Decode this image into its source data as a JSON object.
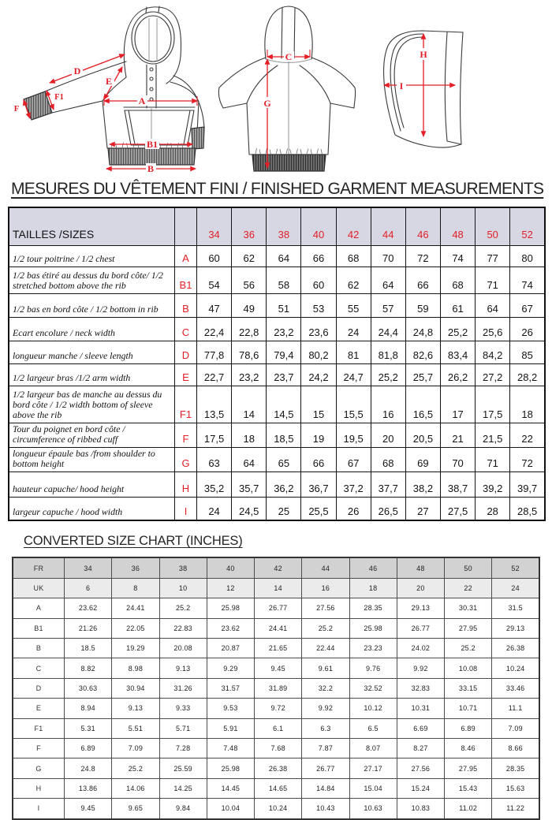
{
  "title_main": "MESURES DU VÊTEMENT FINI / FINISHED GARMENT MEASUREMENTS",
  "title_inches": "CONVERTED SIZE CHART (INCHES)",
  "diagram_labels": {
    "a": "A",
    "b": "B",
    "b1": "B1",
    "c": "C",
    "d": "D",
    "e": "E",
    "f": "F",
    "f1": "F1",
    "g": "G",
    "h": "H",
    "i": "I"
  },
  "colors": {
    "accent_red": "#e41e26",
    "table1_header_bg": "#d7d6e3",
    "fr_row_bg": "#d2d2d2",
    "uk_row_bg": "#ebebeb"
  },
  "finished_table": {
    "header_label": "TAILLES /SIZES",
    "sizes": [
      "34",
      "36",
      "38",
      "40",
      "42",
      "44",
      "46",
      "48",
      "50",
      "52"
    ],
    "rows": [
      {
        "label": "1/2 tour poitrine / 1/2 chest",
        "letter": "A",
        "values": [
          "60",
          "62",
          "64",
          "66",
          "68",
          "70",
          "72",
          "74",
          "77",
          "80"
        ]
      },
      {
        "label": "1/2 bas étiré au dessus du bord côte/ 1/2 stretched bottom above the rib",
        "letter": "B1",
        "values": [
          "54",
          "56",
          "58",
          "60",
          "62",
          "64",
          "66",
          "68",
          "71",
          "74"
        ]
      },
      {
        "label": "1/2 bas en bord côte / 1/2 bottom in rib",
        "letter": "B",
        "values": [
          "47",
          "49",
          "51",
          "53",
          "55",
          "57",
          "59",
          "61",
          "64",
          "67"
        ]
      },
      {
        "label": "Ecart encolure / neck width",
        "letter": "C",
        "values": [
          "22,4",
          "22,8",
          "23,2",
          "23,6",
          "24",
          "24,4",
          "24,8",
          "25,2",
          "25,6",
          "26"
        ]
      },
      {
        "label": "longueur manche  / sleeve length",
        "letter": "D",
        "values": [
          "77,8",
          "78,6",
          "79,4",
          "80,2",
          "81",
          "81,8",
          "82,6",
          "83,4",
          "84,2",
          "85"
        ]
      },
      {
        "label": "1/2 largeur bras /1/2  arm width",
        "letter": "E",
        "values": [
          "22,7",
          "23,2",
          "23,7",
          "24,2",
          "24,7",
          "25,2",
          "25,7",
          "26,2",
          "27,2",
          "28,2"
        ]
      },
      {
        "label": "1/2 largeur bas de manche au dessus du bord côte / 1/2  width bottom of sleeve above the rib",
        "letter": "F1",
        "values": [
          "13,5",
          "14",
          "14,5",
          "15",
          "15,5",
          "16",
          "16,5",
          "17",
          "17,5",
          "18"
        ]
      },
      {
        "label": "Tour du poignet  en bord côte / circumference of  ribbed cuff",
        "letter": "F",
        "values": [
          "17,5",
          "18",
          "18,5",
          "19",
          "19,5",
          "20",
          "20,5",
          "21",
          "21,5",
          "22"
        ]
      },
      {
        "label": "longueur épaule bas  /from shoulder to bottom height",
        "letter": "G",
        "values": [
          "63",
          "64",
          "65",
          "66",
          "67",
          "68",
          "69",
          "70",
          "71",
          "72"
        ]
      },
      {
        "label": "hauteur capuche/ hood height",
        "letter": "H",
        "values": [
          "35,2",
          "35,7",
          "36,2",
          "36,7",
          "37,2",
          "37,7",
          "38,2",
          "38,7",
          "39,2",
          "39,7"
        ]
      },
      {
        "label": "largeur capuche / hood width",
        "letter": "I",
        "values": [
          "24",
          "24,5",
          "25",
          "25,5",
          "26",
          "26,5",
          "27",
          "27,5",
          "28",
          "28,5"
        ]
      }
    ]
  },
  "inches_table": {
    "fr": {
      "label": "FR",
      "values": [
        "34",
        "36",
        "38",
        "40",
        "42",
        "44",
        "46",
        "48",
        "50",
        "52"
      ]
    },
    "uk": {
      "label": "UK",
      "values": [
        "6",
        "8",
        "10",
        "12",
        "14",
        "16",
        "18",
        "20",
        "22",
        "24"
      ]
    },
    "rows": [
      {
        "letter": "A",
        "values": [
          "23.62",
          "24.41",
          "25.2",
          "25.98",
          "26.77",
          "27.56",
          "28.35",
          "29.13",
          "30.31",
          "31.5"
        ]
      },
      {
        "letter": "B1",
        "values": [
          "21.26",
          "22.05",
          "22.83",
          "23.62",
          "24.41",
          "25.2",
          "25.98",
          "26.77",
          "27.95",
          "29.13"
        ]
      },
      {
        "letter": "B",
        "values": [
          "18.5",
          "19.29",
          "20.08",
          "20.87",
          "21.65",
          "22.44",
          "23.23",
          "24.02",
          "25.2",
          "26.38"
        ]
      },
      {
        "letter": "C",
        "values": [
          "8.82",
          "8.98",
          "9.13",
          "9.29",
          "9.45",
          "9.61",
          "9.76",
          "9.92",
          "10.08",
          "10.24"
        ]
      },
      {
        "letter": "D",
        "values": [
          "30.63",
          "30.94",
          "31.26",
          "31.57",
          "31.89",
          "32.2",
          "32.52",
          "32.83",
          "33.15",
          "33.46"
        ]
      },
      {
        "letter": "E",
        "values": [
          "8.94",
          "9.13",
          "9.33",
          "9.53",
          "9.72",
          "9.92",
          "10.12",
          "10.31",
          "10.71",
          "11.1"
        ]
      },
      {
        "letter": "F1",
        "values": [
          "5.31",
          "5.51",
          "5.71",
          "5.91",
          "6.1",
          "6.3",
          "6.5",
          "6.69",
          "6.89",
          "7.09"
        ]
      },
      {
        "letter": "F",
        "values": [
          "6.89",
          "7.09",
          "7.28",
          "7.48",
          "7.68",
          "7.87",
          "8.07",
          "8.27",
          "8.46",
          "8.66"
        ]
      },
      {
        "letter": "G",
        "values": [
          "24.8",
          "25.2",
          "25.59",
          "25.98",
          "26.38",
          "26.77",
          "27.17",
          "27.56",
          "27.95",
          "28.35"
        ]
      },
      {
        "letter": "H",
        "values": [
          "13.86",
          "14.06",
          "14.25",
          "14.45",
          "14.65",
          "14.84",
          "15.04",
          "15.24",
          "15.43",
          "15.63"
        ]
      },
      {
        "letter": "I",
        "values": [
          "9.45",
          "9.65",
          "9.84",
          "10.04",
          "10.24",
          "10.43",
          "10.63",
          "10.83",
          "11.02",
          "11.22"
        ]
      }
    ]
  }
}
